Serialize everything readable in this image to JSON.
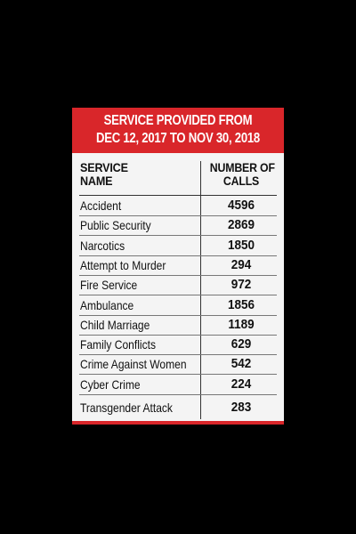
{
  "chart_data": {
    "type": "table",
    "title_lines": [
      "SERVICE PROVIDED FROM",
      "DEC 12, 2017 TO NOV 30, 2018"
    ],
    "columns": [
      "SERVICE\nNAME",
      "NUMBER OF\nCALLS"
    ],
    "column_lines": [
      [
        "SERVICE",
        "NAME"
      ],
      [
        "NUMBER OF",
        "CALLS"
      ]
    ],
    "rows": [
      {
        "service": "Accident",
        "calls": 4596
      },
      {
        "service": "Public Security",
        "calls": 2869
      },
      {
        "service": "Narcotics",
        "calls": 1850
      },
      {
        "service": "Attempt to Murder",
        "calls": 294
      },
      {
        "service": "Fire Service",
        "calls": 972
      },
      {
        "service": "Ambulance",
        "calls": 1856
      },
      {
        "service": "Child Marriage",
        "calls": 1189
      },
      {
        "service": "Family Conflicts",
        "calls": 629
      },
      {
        "service": "Crime Against Women",
        "calls": 542
      },
      {
        "service": "Cyber Crime",
        "calls": 224
      },
      {
        "service": "Transgender Attack",
        "calls": 283
      }
    ]
  },
  "colors": {
    "background": "#000000",
    "card": "#f4f4f4",
    "header": "#d9262a",
    "text": "#111111"
  }
}
